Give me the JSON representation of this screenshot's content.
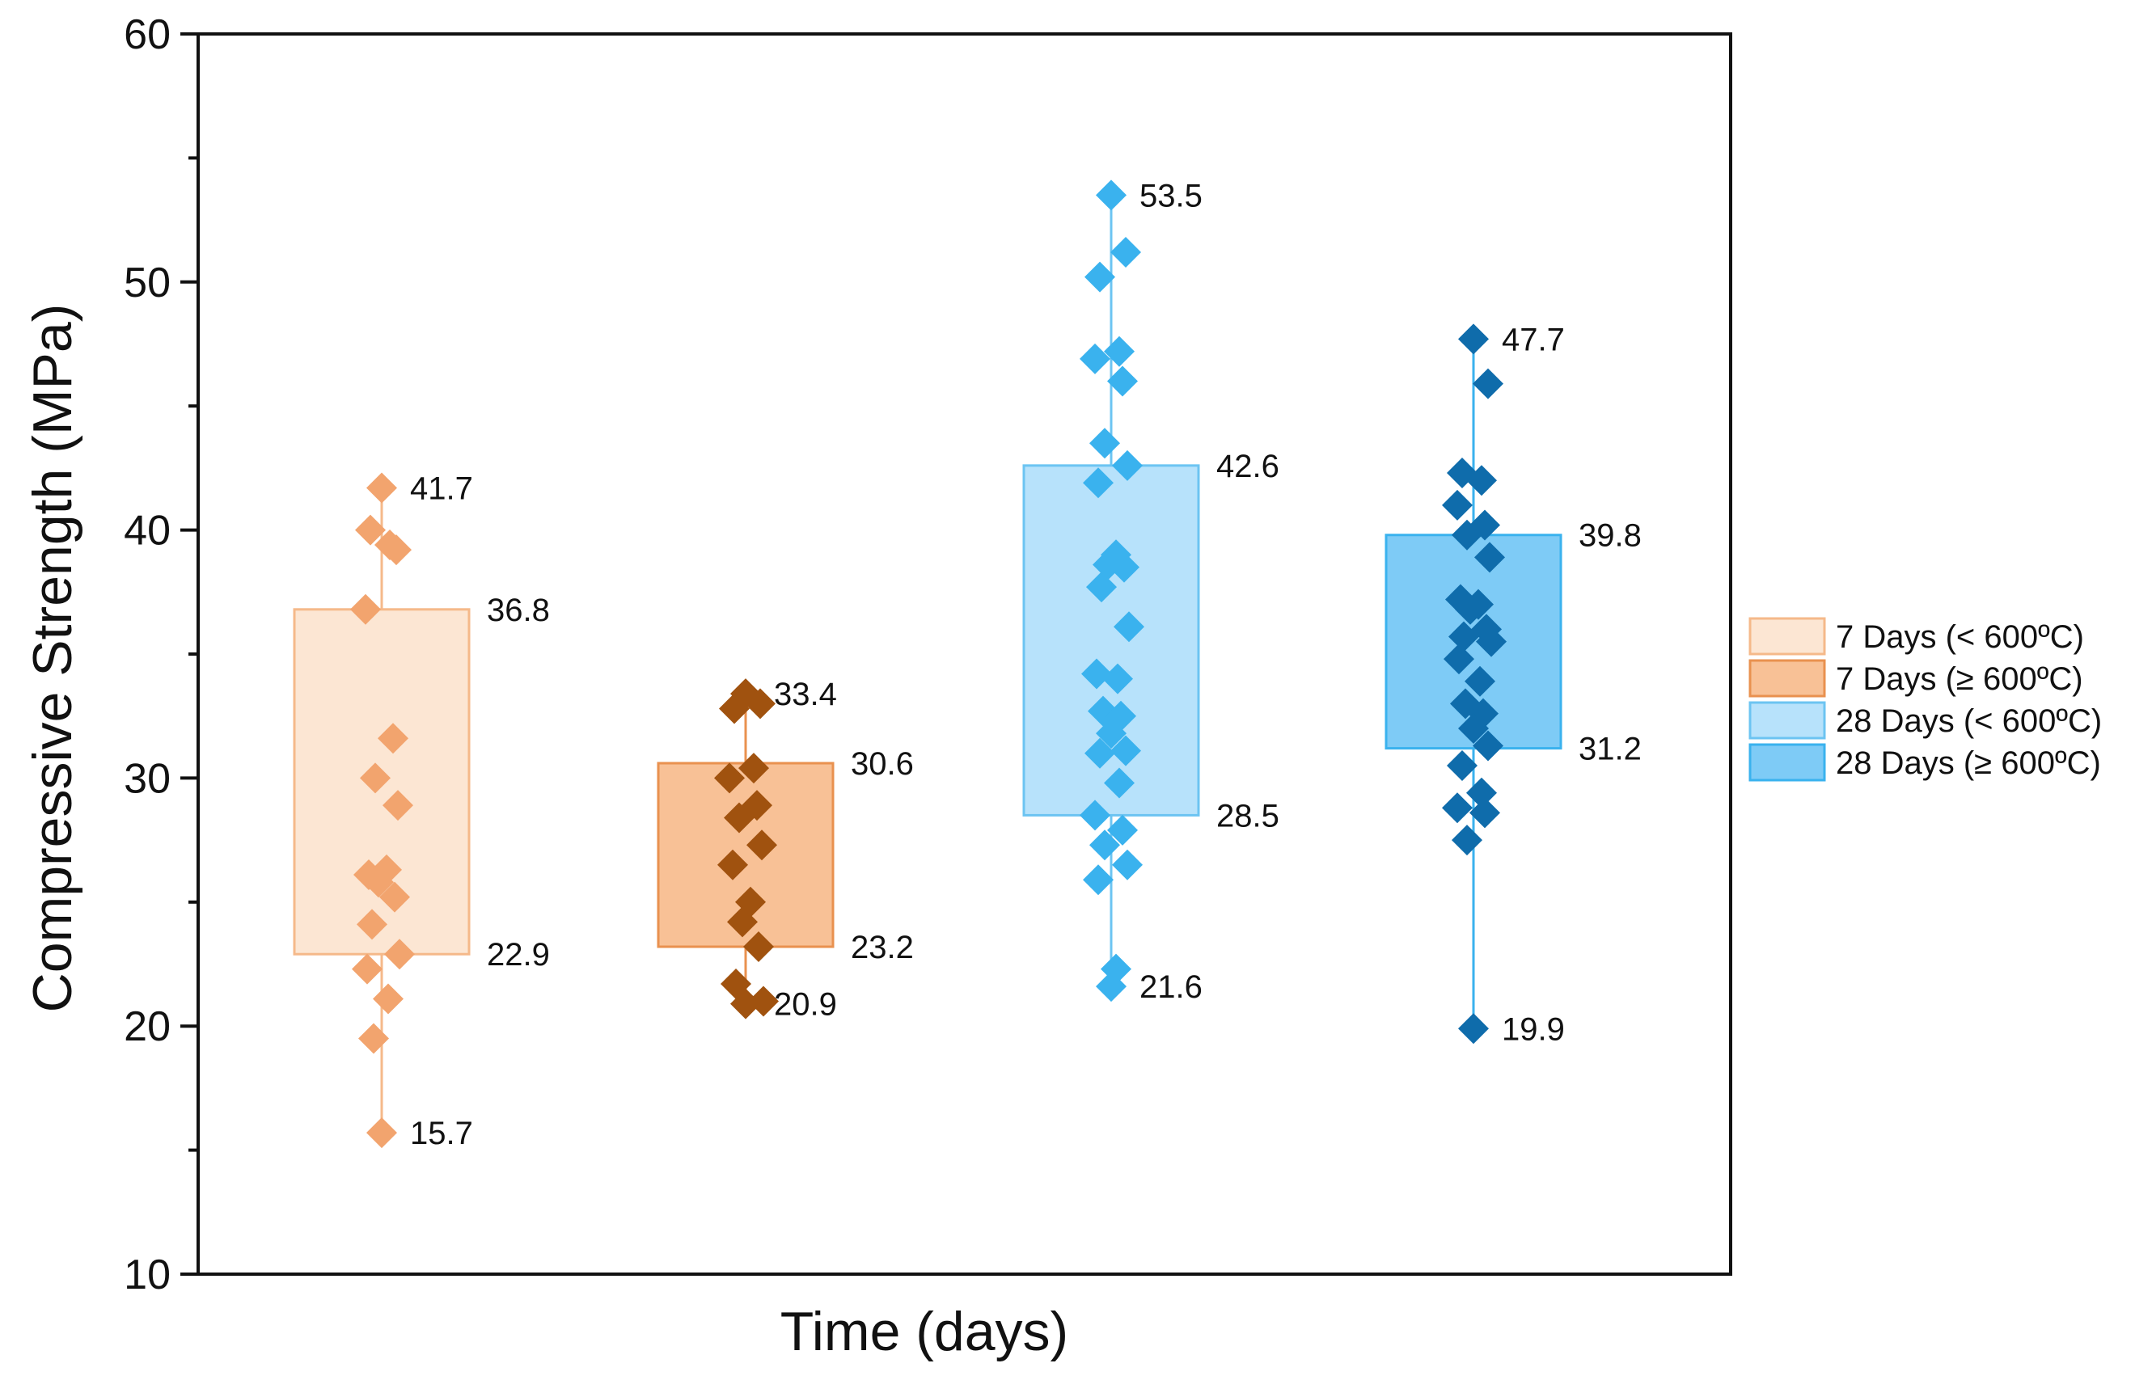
{
  "chart_data": {
    "type": "box",
    "title": "",
    "xlabel": "Time (days)",
    "ylabel": "Compressive Strength (MPa)",
    "ylim": [
      10,
      60
    ],
    "yticks": [
      10,
      20,
      30,
      40,
      50,
      60
    ],
    "grid": false,
    "legend_position": "right",
    "series": [
      {
        "name": "7 Days (< 600ºC)",
        "fill": "#fce6d3",
        "stroke": "#f5b98a",
        "marker": "#f2a46e",
        "box": {
          "q1": 22.9,
          "q3": 36.8,
          "min": 15.7,
          "max": 41.7
        },
        "labels": [
          "41.7",
          "36.8",
          "22.9",
          "15.7"
        ],
        "points": [
          41.7,
          39.2,
          40.0,
          39.4,
          36.8,
          31.6,
          30.0,
          28.9,
          26.1,
          26.3,
          25.8,
          25.2,
          24.1,
          22.9,
          22.3,
          21.1,
          19.5,
          15.7
        ]
      },
      {
        "name": "7 Days (≥ 600ºC)",
        "fill": "#f8c196",
        "stroke": "#e9914f",
        "marker": "#a0520f",
        "box": {
          "q1": 23.2,
          "q3": 30.6,
          "min": 20.9,
          "max": 33.4
        },
        "labels": [
          "33.4",
          "30.6",
          "23.2",
          "20.9"
        ],
        "points": [
          33.4,
          33.0,
          32.8,
          30.4,
          30.0,
          28.9,
          28.4,
          27.3,
          26.5,
          25.0,
          24.2,
          23.2,
          21.7,
          21.0,
          20.9
        ]
      },
      {
        "name": "28 Days (< 600ºC)",
        "fill": "#b7e2fb",
        "stroke": "#6cc4f2",
        "marker": "#3ab2ee",
        "box": {
          "q1": 28.5,
          "q3": 42.6,
          "min": 21.6,
          "max": 53.5
        },
        "labels": [
          "53.5",
          "42.6",
          "28.5",
          "21.6"
        ],
        "points": [
          53.5,
          51.2,
          50.2,
          47.2,
          46.9,
          46.0,
          43.5,
          42.6,
          41.9,
          39.0,
          38.6,
          38.5,
          37.7,
          36.1,
          34.2,
          34.0,
          32.7,
          32.5,
          31.8,
          31.1,
          31.0,
          29.8,
          28.5,
          27.9,
          27.3,
          26.5,
          25.9,
          22.3,
          21.6
        ]
      },
      {
        "name": "28 Days (≥ 600ºC)",
        "fill": "#7ecbf6",
        "stroke": "#3ab2ee",
        "marker": "#0f6cab",
        "box": {
          "q1": 31.2,
          "q3": 39.8,
          "min": 19.9,
          "max": 47.7
        },
        "labels": [
          "47.7",
          "39.8",
          "31.2",
          "19.9"
        ],
        "points": [
          47.7,
          45.9,
          42.3,
          42.0,
          41.0,
          40.2,
          39.8,
          38.9,
          37.2,
          37.0,
          36.8,
          36.0,
          35.7,
          35.5,
          34.8,
          33.9,
          33.0,
          32.6,
          32.0,
          31.3,
          30.5,
          29.4,
          28.8,
          28.6,
          27.5,
          19.9
        ]
      }
    ]
  }
}
